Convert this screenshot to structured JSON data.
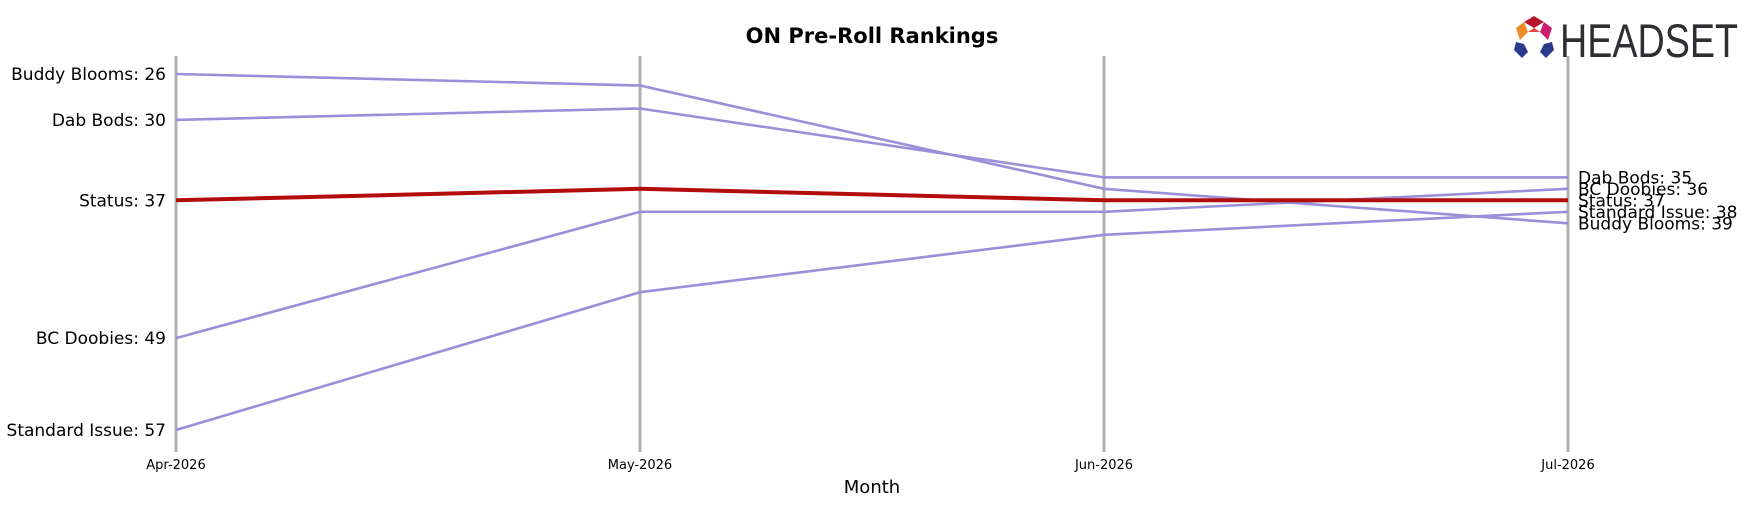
{
  "chart_data": {
    "type": "line",
    "title": "ON Pre-Roll Rankings",
    "xlabel": "Month",
    "ylabel": "",
    "categories": [
      "Apr-2026",
      "May-2026",
      "Jun-2026",
      "Jul-2026"
    ],
    "y_inverted": true,
    "ylim": [
      57,
      26
    ],
    "grid": "vertical lines at each month",
    "series": [
      {
        "name": "Buddy Blooms",
        "values": [
          26,
          27,
          36,
          39
        ],
        "start_label": "Buddy Blooms: 26",
        "end_label": "Buddy Blooms: 39",
        "highlight": false
      },
      {
        "name": "Dab Bods",
        "values": [
          30,
          29,
          35,
          35
        ],
        "start_label": "Dab Bods: 30",
        "end_label": "Dab Bods: 35",
        "highlight": false
      },
      {
        "name": "Status",
        "values": [
          37,
          36,
          37,
          37
        ],
        "start_label": "Status: 37",
        "end_label": "Status: 37",
        "highlight": true
      },
      {
        "name": "BC Doobies",
        "values": [
          49,
          38,
          38,
          36
        ],
        "start_label": "BC Doobies: 49",
        "end_label": "BC Doobies: 36",
        "highlight": false
      },
      {
        "name": "Standard Issue",
        "values": [
          57,
          45,
          40,
          38
        ],
        "start_label": "Standard Issue: 57",
        "end_label": "Standard Issue: 38",
        "highlight": false
      }
    ]
  },
  "colors": {
    "series_line": "#9b8fd9",
    "highlight_line": "#b20c0c",
    "highlight_label": "#c00000",
    "grid_line": "#b0b0b0"
  },
  "logo": {
    "text": "HEADSET",
    "icon": "headset-hexagon-logo-icon"
  }
}
